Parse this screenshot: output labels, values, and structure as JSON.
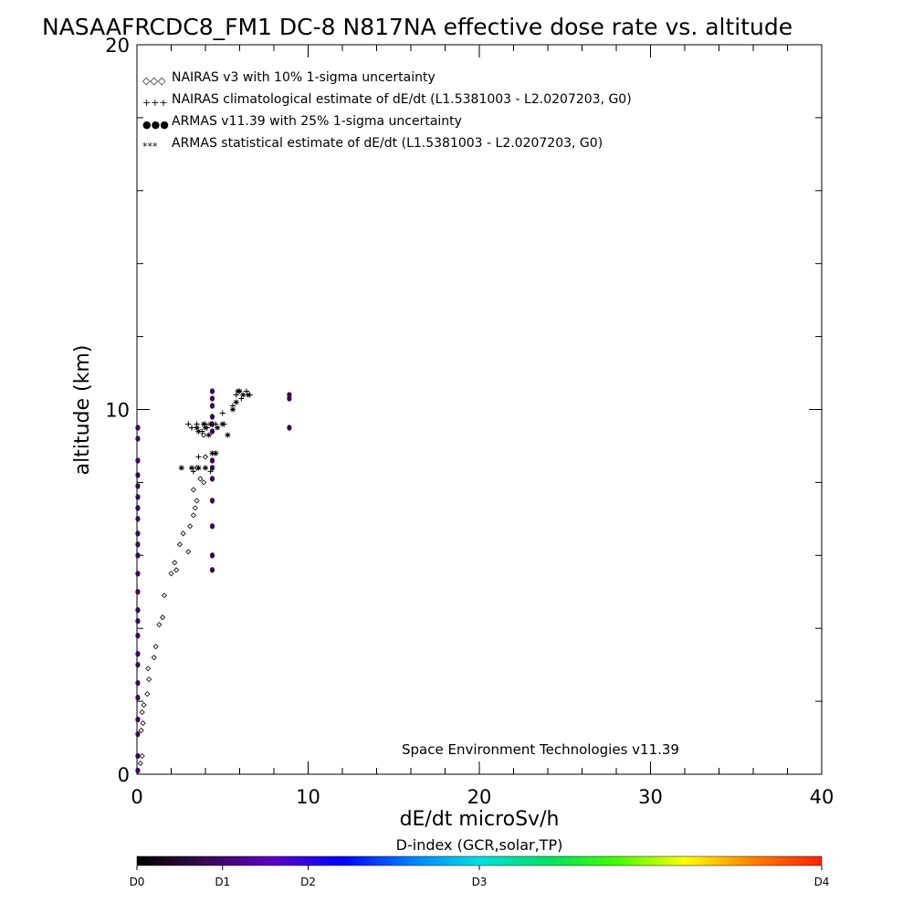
{
  "title": "NASAAFRCDC8_FM1 DC-8   N817NA effective dose rate vs. altitude",
  "chart_data": {
    "type": "scatter",
    "xlabel": "dE/dt microSv/h",
    "ylabel": "altitude (km)",
    "xlim": [
      0,
      40
    ],
    "ylim": [
      0,
      20
    ],
    "x_tick_labels": [
      "0",
      "10",
      "20",
      "30",
      "40"
    ],
    "y_tick_labels": [
      "0",
      "10",
      "20"
    ],
    "legend_position": "top-left",
    "legend": [
      {
        "marker": "◇◇◇",
        "label": "NAIRAS v3 with 10% 1-sigma uncertainty",
        "color": "#000000"
      },
      {
        "marker": "+++",
        "label": "NAIRAS climatological estimate of dE/dt (L1.5381003 - L2.0207203, G0)",
        "color": "#000000"
      },
      {
        "marker": "●●●",
        "label": "ARMAS v11.39 with 25% 1-sigma uncertainty",
        "color": "#1a3fd6"
      },
      {
        "marker": "***",
        "label": "ARMAS statistical estimate of dE/dt (L1.5381003 - L2.0207203, G0)",
        "color": "#000000"
      }
    ],
    "series": [
      {
        "name": "NAIRAS v3 with 10% 1-sigma uncertainty",
        "marker": "diamond",
        "color": "#000000",
        "points": [
          [
            0.2,
            0.3
          ],
          [
            0.3,
            0.5
          ],
          [
            0.25,
            1.2
          ],
          [
            0.35,
            1.4
          ],
          [
            0.3,
            1.7
          ],
          [
            0.4,
            1.9
          ],
          [
            0.6,
            2.2
          ],
          [
            0.7,
            2.6
          ],
          [
            0.65,
            2.9
          ],
          [
            1.0,
            3.2
          ],
          [
            1.1,
            3.5
          ],
          [
            1.3,
            4.1
          ],
          [
            1.5,
            4.3
          ],
          [
            1.6,
            4.9
          ],
          [
            2.0,
            5.5
          ],
          [
            2.2,
            5.8
          ],
          [
            2.3,
            5.6
          ],
          [
            2.5,
            6.3
          ],
          [
            3.0,
            6.1
          ],
          [
            2.7,
            6.6
          ],
          [
            3.1,
            6.8
          ],
          [
            3.3,
            7.1
          ],
          [
            3.4,
            7.3
          ],
          [
            3.5,
            7.5
          ],
          [
            3.3,
            7.8
          ],
          [
            3.7,
            8.1
          ],
          [
            3.9,
            8.0
          ],
          [
            3.5,
            8.4
          ],
          [
            4.0,
            8.7
          ],
          [
            3.9,
            9.3
          ]
        ]
      },
      {
        "name": "NAIRAS climatological estimate of dE/dt (L1.5381003 - L2.0207203, G0)",
        "marker": "plus",
        "color": "#000000",
        "points": [
          [
            3.3,
            8.3
          ],
          [
            3.6,
            8.7
          ],
          [
            4.3,
            8.3
          ],
          [
            4.6,
            8.8
          ],
          [
            3.0,
            9.6
          ],
          [
            3.5,
            9.6
          ],
          [
            4.0,
            9.6
          ],
          [
            4.6,
            9.6
          ],
          [
            5.1,
            9.6
          ],
          [
            5.0,
            9.9
          ],
          [
            5.6,
            10.1
          ],
          [
            5.8,
            10.4
          ],
          [
            6.1,
            10.3
          ],
          [
            6.4,
            10.5
          ],
          [
            6.6,
            10.4
          ],
          [
            3.2,
            9.5
          ],
          [
            3.8,
            9.4
          ],
          [
            4.1,
            9.5
          ]
        ]
      },
      {
        "name": "ARMAS v11.39 with 25% 1-sigma uncertainty",
        "marker": "dot",
        "color": "#3a0a52",
        "points": [
          [
            0.05,
            0.1
          ],
          [
            0.05,
            0.5
          ],
          [
            0.05,
            1.1
          ],
          [
            0.05,
            1.5
          ],
          [
            0.05,
            2.1
          ],
          [
            0.05,
            2.5
          ],
          [
            0.05,
            3.0
          ],
          [
            0.05,
            3.3
          ],
          [
            0.05,
            3.8
          ],
          [
            0.05,
            4.2
          ],
          [
            0.05,
            4.5
          ],
          [
            0.05,
            5.0
          ],
          [
            0.05,
            5.5
          ],
          [
            0.05,
            6.0
          ],
          [
            0.05,
            6.3
          ],
          [
            0.05,
            6.6
          ],
          [
            0.05,
            7.0
          ],
          [
            0.05,
            7.3
          ],
          [
            0.05,
            7.6
          ],
          [
            0.05,
            7.9
          ],
          [
            0.05,
            8.2
          ],
          [
            0.05,
            8.6
          ],
          [
            0.05,
            9.2
          ],
          [
            0.05,
            9.5
          ],
          [
            4.4,
            5.6
          ],
          [
            4.4,
            6.0
          ],
          [
            4.4,
            6.8
          ],
          [
            4.4,
            7.5
          ],
          [
            4.4,
            8.1
          ],
          [
            4.4,
            8.4
          ],
          [
            4.4,
            8.6
          ],
          [
            4.4,
            9.4
          ],
          [
            4.4,
            9.6
          ],
          [
            4.4,
            9.8
          ],
          [
            4.4,
            10.1
          ],
          [
            4.4,
            10.3
          ],
          [
            4.4,
            10.5
          ],
          [
            8.9,
            9.5
          ],
          [
            8.9,
            10.3
          ],
          [
            8.9,
            10.4
          ]
        ]
      },
      {
        "name": "ARMAS statistical estimate of dE/dt (L1.5381003 - L2.0207203, G0)",
        "marker": "asterisk",
        "color": "#000000",
        "points": [
          [
            2.6,
            8.4
          ],
          [
            3.2,
            8.4
          ],
          [
            3.6,
            8.4
          ],
          [
            4.0,
            8.4
          ],
          [
            4.6,
            8.8
          ],
          [
            4.4,
            8.8
          ],
          [
            3.5,
            9.5
          ],
          [
            3.6,
            9.4
          ],
          [
            4.0,
            9.5
          ],
          [
            4.2,
            9.3
          ],
          [
            4.7,
            9.5
          ],
          [
            5.3,
            9.3
          ],
          [
            5.0,
            9.6
          ],
          [
            5.6,
            10.0
          ],
          [
            5.8,
            10.2
          ],
          [
            6.0,
            10.5
          ],
          [
            6.2,
            10.4
          ],
          [
            6.5,
            10.4
          ],
          [
            5.9,
            10.5
          ],
          [
            4.3,
            9.6
          ],
          [
            3.9,
            9.6
          ]
        ]
      }
    ]
  },
  "credit": "Space Environment Technologies v11.39",
  "colorbar": {
    "title": "D-index (GCR,solar,TP)",
    "labels": [
      "D0",
      "D1",
      "D2",
      "D3",
      "D4"
    ],
    "label_positions": [
      0,
      0.125,
      0.25,
      0.5,
      1.0
    ],
    "colors": [
      "#000000",
      "#3a0a52",
      "#5a00c8",
      "#0000ff",
      "#0080ff",
      "#00e0e0",
      "#00e060",
      "#40ff00",
      "#ffff00",
      "#ff8000",
      "#ff2000"
    ]
  }
}
